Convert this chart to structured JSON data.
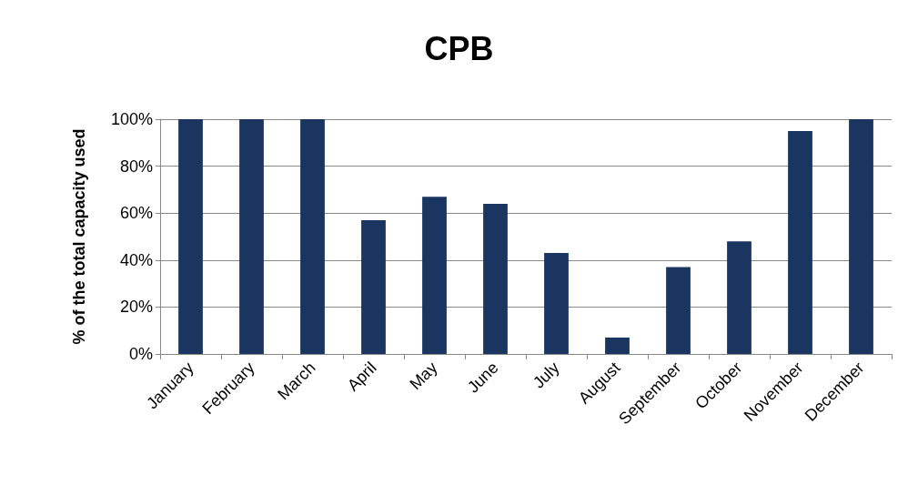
{
  "chart_data": {
    "type": "bar",
    "title": "CPB",
    "ylabel": "% of the total capacity used",
    "categories": [
      "January",
      "February",
      "March",
      "April",
      "May",
      "June",
      "July",
      "August",
      "September",
      "October",
      "November",
      "December"
    ],
    "values": [
      100,
      100,
      100,
      57,
      67,
      64,
      43,
      7,
      37,
      48,
      95,
      100
    ],
    "color": "#1a3660",
    "ylim": [
      0,
      100
    ],
    "yticks": [
      {
        "value": 0,
        "label": "0%"
      },
      {
        "value": 20,
        "label": "20%"
      },
      {
        "value": 40,
        "label": "40%"
      },
      {
        "value": 60,
        "label": "60%"
      },
      {
        "value": 80,
        "label": "80%"
      },
      {
        "value": 100,
        "label": "100%"
      }
    ],
    "grid": "y"
  }
}
